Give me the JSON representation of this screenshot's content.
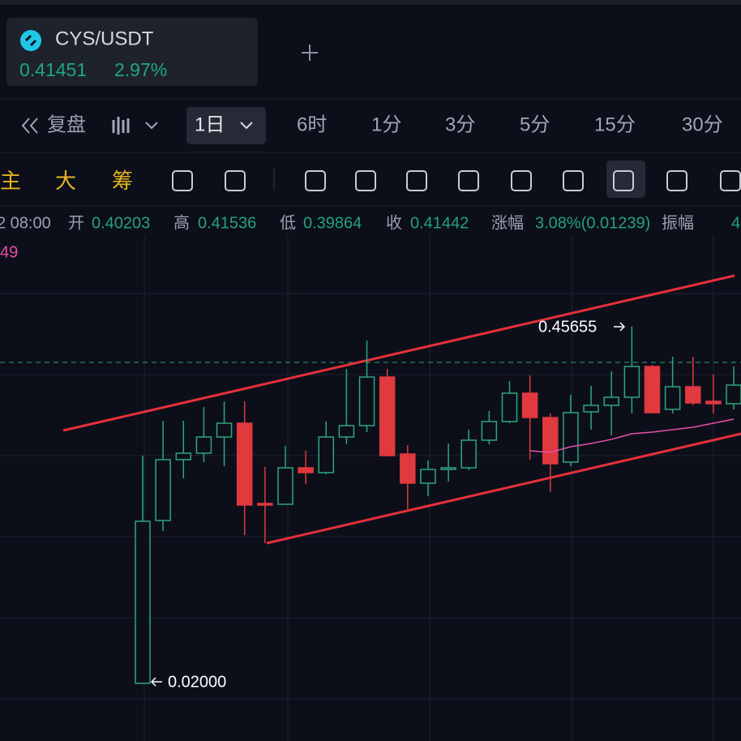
{
  "tab": {
    "symbol": "CYS/USDT",
    "price": "0.41451",
    "change": "2.97%"
  },
  "toolbar": {
    "replay": "复盘",
    "intervals": [
      "1日",
      "6时",
      "1分",
      "3分",
      "5分",
      "15分",
      "30分"
    ]
  },
  "indicators": [
    "主",
    "大",
    "筹"
  ],
  "info": {
    "time": "2 08:00",
    "open_label": "开",
    "open": "0.40203",
    "high_label": "高",
    "high": "0.41536",
    "low_label": "低",
    "low": "0.39864",
    "close_label": "收",
    "close": "0.41442",
    "change_label": "涨幅",
    "change": "3.08%(0.01239)",
    "amp_label": "振幅",
    "amp": "4",
    "ma_label": "49"
  },
  "chart_data": {
    "type": "candlestick",
    "ylim": [
      0,
      0.5
    ],
    "up_color": "#2fa67c",
    "down_color": "#e0393e",
    "open": [
      0.02,
      0.2192,
      0.2937,
      0.3016,
      0.3214,
      0.3383,
      0.2401,
      0.2391,
      0.2837,
      0.2778,
      0.3214,
      0.3353,
      0.3948,
      0.3006,
      0.2649,
      0.2817,
      0.2837,
      0.3175,
      0.3403,
      0.375,
      0.3452,
      0.2907,
      0.3522,
      0.3601,
      0.37,
      0.4077,
      0.3552,
      0.3829,
      0.3651,
      0.3621
    ],
    "high": [
      0.2986,
      0.3413,
      0.3413,
      0.3581,
      0.3651,
      0.3651,
      0.2847,
      0.3105,
      0.3046,
      0.3403,
      0.4048,
      0.4395,
      0.4048,
      0.3115,
      0.2927,
      0.3135,
      0.3304,
      0.3532,
      0.3899,
      0.3968,
      0.3502,
      0.373,
      0.3839,
      0.4018,
      0.45655,
      0.4097,
      0.4196,
      0.4196,
      0.3978,
      0.4077
    ],
    "low": [
      0.02,
      0.2063,
      0.2708,
      0.2907,
      0.2857,
      0.2014,
      0.1915,
      0.2391,
      0.2639,
      0.2758,
      0.3125,
      0.3274,
      0.2976,
      0.2331,
      0.249,
      0.2669,
      0.2808,
      0.3125,
      0.3383,
      0.2937,
      0.254,
      0.2857,
      0.3304,
      0.3234,
      0.3502,
      0.3502,
      0.3502,
      0.3601,
      0.3502,
      0.3552
    ],
    "close": [
      0.2183,
      0.2937,
      0.3016,
      0.3214,
      0.3383,
      0.2381,
      0.2381,
      0.2837,
      0.2778,
      0.3214,
      0.3353,
      0.3948,
      0.2986,
      0.2649,
      0.2817,
      0.2837,
      0.3175,
      0.3403,
      0.375,
      0.3452,
      0.2887,
      0.3512,
      0.3601,
      0.37,
      0.4077,
      0.3512,
      0.3829,
      0.3631,
      0.3621,
      0.3849
    ],
    "ma": {
      "color": "#e84fa7",
      "values": [
        null,
        null,
        null,
        null,
        null,
        null,
        null,
        null,
        null,
        null,
        null,
        null,
        null,
        null,
        null,
        null,
        null,
        null,
        null,
        0.3046,
        0.3026,
        0.3095,
        0.3135,
        0.3185,
        0.3254,
        0.3274,
        0.3304,
        0.3333,
        0.3383,
        0.3433
      ]
    },
    "annotations": {
      "high": "0.45655",
      "low": "0.02000"
    }
  }
}
